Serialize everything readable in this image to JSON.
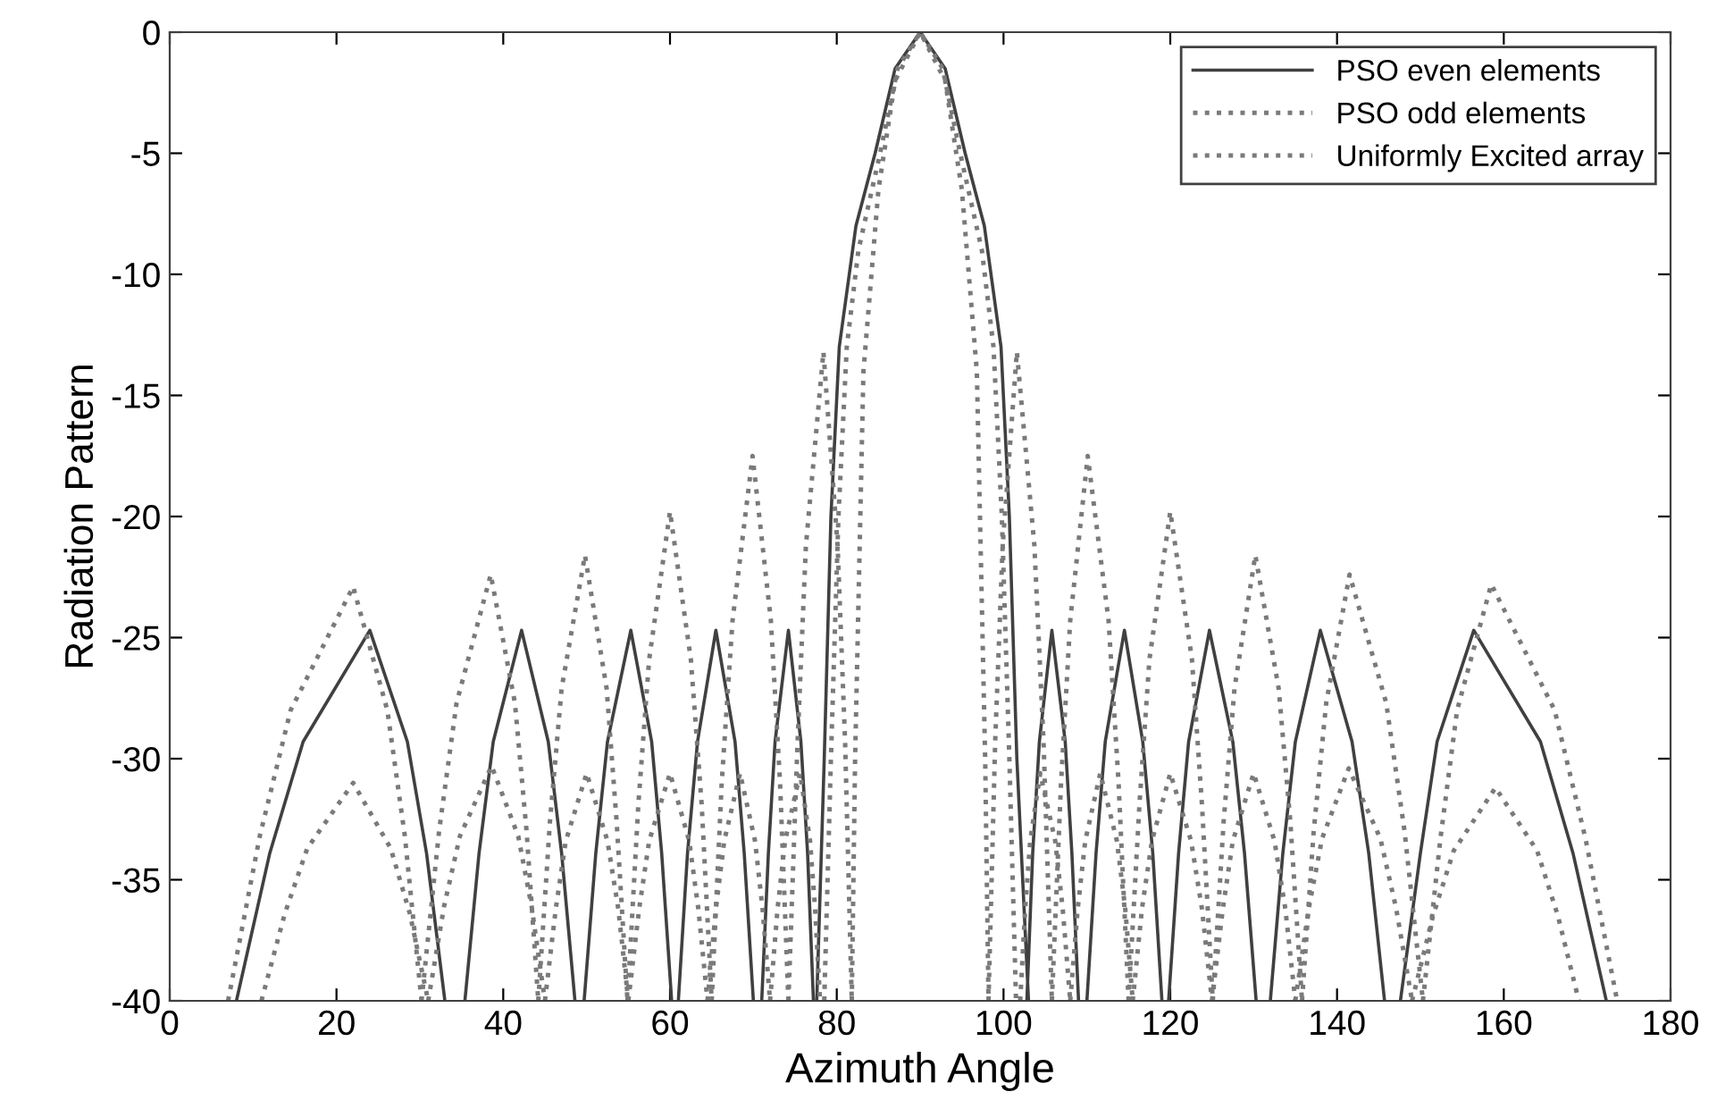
{
  "chart_data": {
    "type": "line",
    "xlabel": "Azimuth Angle",
    "ylabel": "Radiation Pattern",
    "xlim": [
      0,
      180
    ],
    "ylim": [
      -40,
      0
    ],
    "xticks": [
      0,
      20,
      40,
      60,
      80,
      100,
      120,
      140,
      160,
      180
    ],
    "yticks": [
      -40,
      -35,
      -30,
      -25,
      -20,
      -15,
      -10,
      -5,
      0
    ],
    "grid": false,
    "legend": "top right",
    "marker": "none",
    "series": [
      {
        "name": "PSO even elements",
        "color": "#404040",
        "line_style": "solid",
        "x": [
          8,
          12,
          16,
          24,
          28.5,
          30.8,
          33,
          null,
          35.4,
          37.1,
          38.8,
          42.2,
          45.4,
          47.0,
          48.6,
          null,
          49.7,
          51.1,
          52.5,
          55.3,
          57.8,
          59.0,
          60.2,
          null,
          61,
          62.1,
          63.3,
          65.5,
          67.8,
          68.9,
          70,
          null,
          71,
          71.8,
          72.6,
          74.2,
          75.7,
          76.5,
          77.2,
          null,
          77.6,
          78.5,
          79.3,
          80.3,
          82.3,
          84.6,
          87,
          90,
          93,
          95.4,
          97.7,
          99.7,
          100.7,
          101.6,
          103,
          null,
          102.8,
          103.5,
          104.3,
          105.8,
          107.4,
          108.2,
          109,
          null,
          110,
          111.1,
          112.2,
          114.5,
          116.7,
          117.9,
          119,
          null,
          119.8,
          121.0,
          122.2,
          124.7,
          127.5,
          128.9,
          130.3,
          null,
          132,
          133.5,
          135,
          138,
          141.8,
          143.8,
          145.7,
          null,
          147.6,
          150,
          152,
          156.4,
          164.4,
          168.3,
          172.3
        ],
        "values": [
          -40,
          -33.9,
          -29.3,
          -24.7,
          -29.3,
          -33.9,
          -40,
          null,
          -40,
          -33.9,
          -29.3,
          -24.7,
          -29.3,
          -33.9,
          -40,
          null,
          -40,
          -33.9,
          -29.3,
          -24.7,
          -29.3,
          -33.9,
          -40,
          null,
          -40,
          -33.9,
          -29.3,
          -24.7,
          -29.3,
          -33.9,
          -40,
          null,
          -40,
          -33.9,
          -29.3,
          -24.7,
          -29.3,
          -33.9,
          -40,
          null,
          -40,
          -30,
          -20,
          -13,
          -8,
          -5,
          -1.5,
          0,
          -1.5,
          -5,
          -8,
          -13,
          -20,
          -30,
          -40,
          null,
          -40,
          -33.9,
          -29.3,
          -24.7,
          -29.3,
          -33.9,
          -40,
          null,
          -40,
          -33.9,
          -29.3,
          -24.7,
          -29.3,
          -33.9,
          -40,
          null,
          -40,
          -33.9,
          -29.3,
          -24.7,
          -29.3,
          -33.9,
          -40,
          null,
          -40,
          -33.9,
          -29.3,
          -24.7,
          -29.3,
          -33.9,
          -40,
          null,
          -40,
          -33.9,
          -29.3,
          -24.7,
          -29.3,
          -33.9,
          -40
        ]
      },
      {
        "name": "PSO odd elements",
        "color": "#7a7a7a",
        "line_style": "dotted",
        "x": [
          11,
          13.8,
          16.5,
          22,
          26.5,
          28.8,
          31,
          null,
          31,
          32.9,
          34.8,
          38.6,
          41.8,
          43.4,
          45,
          null,
          45,
          46.3,
          47.5,
          50,
          52.5,
          53.8,
          55,
          null,
          55,
          56.3,
          57.5,
          60,
          62.3,
          63.4,
          64.5,
          null,
          64.5,
          65.5,
          66.5,
          68.4,
          70.2,
          71.1,
          72,
          null,
          72,
          72.9,
          73.8,
          75.6,
          76.8,
          77.4,
          78,
          null,
          78.5,
          79.3,
          80.2,
          81.2,
          82.6,
          85.2,
          87.3,
          90,
          92.7,
          94.8,
          97.4,
          98.8,
          99.8,
          100.7,
          101.5,
          null,
          102,
          102.6,
          103.2,
          104.4,
          106.2,
          107.1,
          108,
          null,
          108,
          108.9,
          109.8,
          111.6,
          113.6,
          114.6,
          115.5,
          null,
          115.5,
          116.6,
          117.8,
          120,
          122.5,
          123.8,
          125,
          null,
          125,
          126.3,
          127.5,
          130,
          132.5,
          133.8,
          135,
          null,
          135,
          136.6,
          138.2,
          141.4,
          145.2,
          147.1,
          149,
          null,
          149,
          151.5,
          154,
          159,
          164,
          166.5,
          169
        ],
        "values": [
          -40,
          -36.4,
          -33.7,
          -31.0,
          -33.7,
          -36.4,
          -40,
          null,
          -40,
          -36.1,
          -33.2,
          -30.3,
          -33.2,
          -36.1,
          -40,
          null,
          -40,
          -36.2,
          -33.4,
          -30.6,
          -33.4,
          -36.2,
          -40,
          null,
          -40,
          -36.2,
          -33.4,
          -30.6,
          -33.4,
          -36.2,
          -40,
          null,
          -40,
          -36.2,
          -33.4,
          -30.6,
          -33.4,
          -36.2,
          -40,
          null,
          -40,
          -36.2,
          -33.4,
          -30.6,
          -33.4,
          -36.2,
          -40,
          null,
          -40,
          -30,
          -20,
          -13,
          -9,
          -5,
          -1.5,
          0,
          -1.5,
          -5,
          -9,
          -13,
          -20,
          -30,
          -40,
          null,
          -40,
          -36.2,
          -33.4,
          -30.6,
          -33.4,
          -36.2,
          -40,
          null,
          -40,
          -36.2,
          -33.4,
          -30.6,
          -33.4,
          -36.2,
          -40,
          null,
          -40,
          -36.2,
          -33.4,
          -30.6,
          -33.4,
          -36.2,
          -40,
          null,
          -40,
          -36.2,
          -33.4,
          -30.6,
          -33.4,
          -36.2,
          -40,
          null,
          -40,
          -36.2,
          -33.3,
          -30.4,
          -33.3,
          -36.2,
          -40,
          null,
          -40,
          -36.5,
          -33.8,
          -31.2,
          -33.8,
          -36.5,
          -40
        ]
      },
      {
        "name": "Uniformly Excited array",
        "color": "#7a7a7a",
        "line_style": "dotted",
        "x": [
          7,
          10.8,
          14.5,
          22,
          26.1,
          28.2,
          30.2,
          null,
          30.2,
          32.3,
          34.4,
          38.5,
          41.4,
          42.8,
          44.2,
          null,
          44.2,
          45.6,
          47.0,
          49.8,
          52.4,
          53.6,
          54.9,
          null,
          54.9,
          56.2,
          57.5,
          60,
          62.5,
          63.8,
          65,
          null,
          65,
          66.2,
          67.5,
          69.9,
          72.1,
          73.2,
          74.2,
          null,
          74.2,
          75.3,
          76.3,
          78.4,
          80.1,
          81.0,
          81.8,
          null,
          81.8,
          82.2,
          83.2,
          85,
          87,
          90,
          93,
          95,
          96.8,
          97.8,
          98.2,
          null,
          98.2,
          99.0,
          99.9,
          101.6,
          103.7,
          104.8,
          105.8,
          null,
          105.8,
          106.9,
          108.0,
          110.1,
          112.6,
          113.8,
          115,
          null,
          115,
          116.3,
          117.5,
          120,
          122.6,
          123.8,
          125.1,
          null,
          125.1,
          126.4,
          127.7,
          130.2,
          133,
          134.4,
          135.8,
          null,
          135.8,
          137.2,
          138.7,
          141.5,
          145.9,
          148.1,
          150.3,
          null,
          150.3,
          152.4,
          154.4,
          158.5,
          166.1,
          169.8,
          173.6
        ],
        "values": [
          -40,
          -33.2,
          -28.0,
          -22.9,
          -28.0,
          -33.2,
          -40,
          null,
          -40,
          -33.0,
          -27.7,
          -22.4,
          -27.7,
          -33.0,
          -40,
          null,
          -40,
          -32.6,
          -27.1,
          -21.6,
          -27.1,
          -32.6,
          -40,
          null,
          -40,
          -31.9,
          -25.9,
          -19.8,
          -25.9,
          -31.9,
          -40,
          null,
          -40,
          -31.0,
          -24.3,
          -17.5,
          -24.3,
          -31.0,
          -40,
          null,
          -40,
          -29.3,
          -21.2,
          -13.2,
          -21.2,
          -29.3,
          -40,
          null,
          -40,
          -30,
          -14,
          -6.5,
          -2,
          0,
          -2,
          -6.5,
          -14,
          -30,
          -40,
          null,
          -40,
          -29.3,
          -21.2,
          -13.2,
          -21.2,
          -29.3,
          -40,
          null,
          -40,
          -31.0,
          -24.3,
          -17.5,
          -24.3,
          -31.0,
          -40,
          null,
          -40,
          -31.9,
          -25.9,
          -19.8,
          -25.9,
          -31.9,
          -40,
          null,
          -40,
          -32.6,
          -27.1,
          -21.6,
          -27.1,
          -32.6,
          -40,
          null,
          -40,
          -33.0,
          -27.7,
          -22.4,
          -27.7,
          -33.0,
          -40,
          null,
          -40,
          -33.3,
          -28.0,
          -22.8,
          -28.0,
          -33.3,
          -40
        ]
      }
    ]
  }
}
